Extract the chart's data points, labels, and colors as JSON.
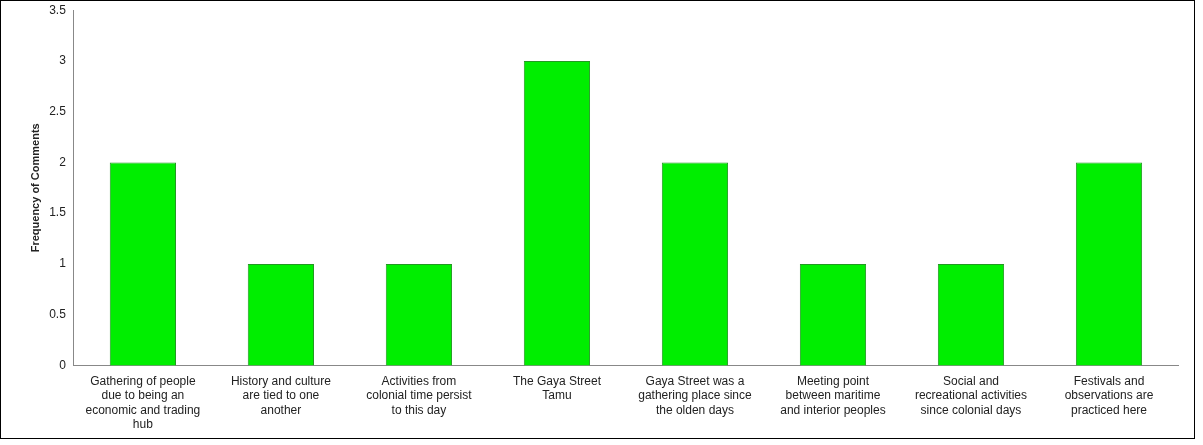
{
  "chart_data": {
    "type": "bar",
    "ylabel": "Frequency of Comments",
    "categories": [
      "Gathering of people due to being an economic and trading hub",
      "History and culture are tied to one another",
      "Activities from colonial time persist to this day",
      "The Gaya Street Tamu",
      "Gaya Street was a gathering place since the olden days",
      "Meeting point between maritime and interior peoples",
      "Social and recreational activities since colonial days",
      "Festivals and observations are practiced here"
    ],
    "values": [
      2,
      1,
      1,
      3,
      2,
      1,
      1,
      2
    ],
    "color": "#00ee00",
    "ylim": [
      0,
      3.5
    ],
    "yticks": [
      0,
      0.5,
      1,
      1.5,
      2,
      2.5,
      3,
      3.5
    ],
    "grid": false
  }
}
